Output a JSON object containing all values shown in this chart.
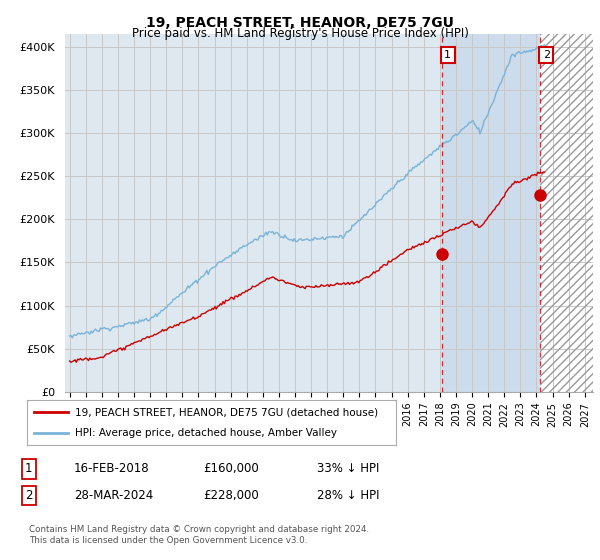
{
  "title": "19, PEACH STREET, HEANOR, DE75 7GU",
  "subtitle": "Price paid vs. HM Land Registry's House Price Index (HPI)",
  "ylabel_ticks": [
    "£0",
    "£50K",
    "£100K",
    "£150K",
    "£200K",
    "£250K",
    "£300K",
    "£350K",
    "£400K"
  ],
  "ytick_values": [
    0,
    50000,
    100000,
    150000,
    200000,
    250000,
    300000,
    350000,
    400000
  ],
  "ylim": [
    0,
    415000
  ],
  "xlim_start": 1994.7,
  "xlim_end": 2027.5,
  "hpi_color": "#7ab3d8",
  "price_color": "#cc0000",
  "grid_color": "#c8c8c8",
  "bg_color": "#dde8f0",
  "hatch_bg": "#eaecf0",
  "marker1_year": 2018.12,
  "marker1_price": 160000,
  "marker2_year": 2024.24,
  "marker2_price": 228000,
  "legend_line1": "19, PEACH STREET, HEANOR, DE75 7GU (detached house)",
  "legend_line2": "HPI: Average price, detached house, Amber Valley",
  "footnote": "Contains HM Land Registry data © Crown copyright and database right 2024.\nThis data is licensed under the Open Government Licence v3.0.",
  "xtick_years": [
    1995,
    1996,
    1997,
    1998,
    1999,
    2000,
    2001,
    2002,
    2003,
    2004,
    2005,
    2006,
    2007,
    2008,
    2009,
    2010,
    2011,
    2012,
    2013,
    2014,
    2015,
    2016,
    2017,
    2018,
    2019,
    2020,
    2021,
    2022,
    2023,
    2024,
    2025,
    2026,
    2027
  ],
  "shade_start": 2018.12,
  "shade_mid": 2024.24,
  "shade_end": 2027.5
}
